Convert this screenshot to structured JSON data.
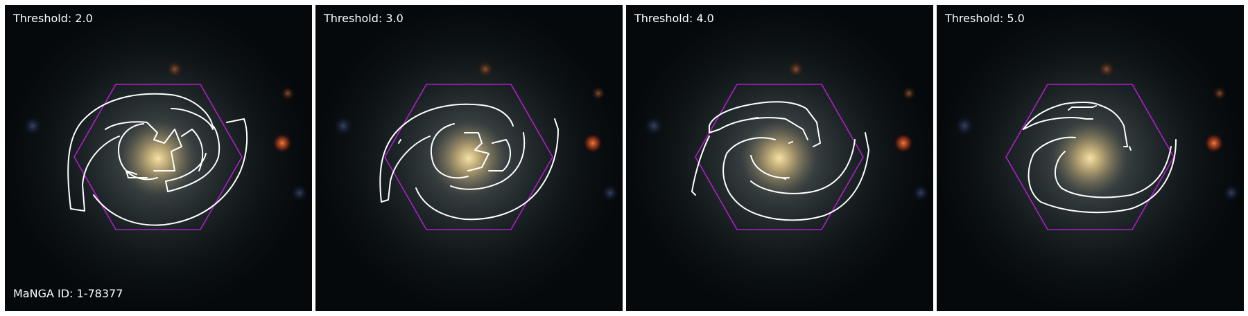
{
  "panels": [
    {
      "threshold_label": "Threshold: 2.0"
    },
    {
      "threshold_label": "Threshold: 3.0"
    },
    {
      "threshold_label": "Threshold: 4.0"
    },
    {
      "threshold_label": "Threshold: 5.0"
    }
  ],
  "manga_id_label": "MaNGA ID: 1-78377",
  "colors": {
    "hexagon": "#b01ec8",
    "contour": "#ffffff",
    "background": "#05090b",
    "galaxy_core": "#d4c08a"
  },
  "icons": {
    "overlay_shape": "hexagon-outline",
    "contour": "white-contour-line"
  }
}
